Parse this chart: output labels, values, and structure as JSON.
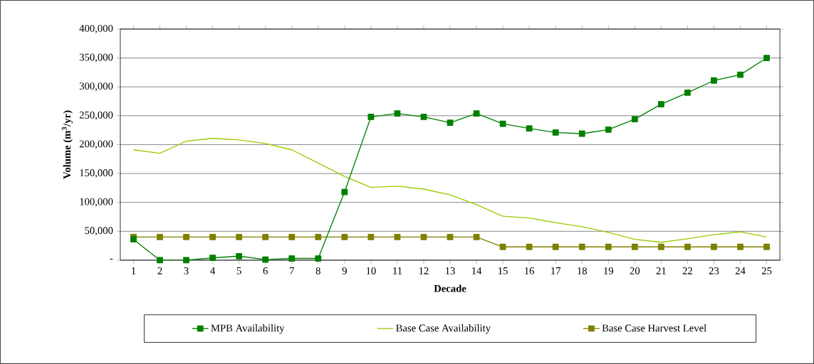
{
  "chart_data": {
    "type": "line",
    "xlabel": "Decade",
    "ylabel": "Volume (m$^{3}$/yr)",
    "categories": [
      "1",
      "2",
      "3",
      "4",
      "5",
      "6",
      "7",
      "8",
      "9",
      "10",
      "11",
      "12",
      "13",
      "14",
      "15",
      "16",
      "17",
      "18",
      "19",
      "20",
      "21",
      "22",
      "23",
      "24",
      "25"
    ],
    "series": [
      {
        "name": "MPB Availability",
        "color": "#008000",
        "marker": "square",
        "values": [
          36000,
          0,
          0,
          4000,
          7000,
          1000,
          3000,
          3000,
          118000,
          248000,
          254000,
          248000,
          238000,
          254000,
          236000,
          228000,
          221000,
          219000,
          226000,
          244000,
          270000,
          290000,
          311000,
          321000,
          350000
        ]
      },
      {
        "name": "Base Case Availability",
        "color": "#99cc00",
        "marker": "none",
        "values": [
          191000,
          185000,
          206000,
          211000,
          208000,
          202000,
          191000,
          168000,
          145000,
          126000,
          128000,
          123000,
          113000,
          96000,
          76000,
          73000,
          65000,
          58000,
          48000,
          36000,
          31000,
          37000,
          44000,
          49000,
          40000
        ]
      },
      {
        "name": "Base Case Harvest Level",
        "color": "#808000",
        "marker": "square",
        "values": [
          40000,
          40000,
          40000,
          40000,
          40000,
          40000,
          40000,
          40000,
          40000,
          40000,
          40000,
          40000,
          40000,
          40000,
          23000,
          23000,
          23000,
          23000,
          23000,
          23000,
          23000,
          23000,
          23000,
          23000,
          23000
        ]
      }
    ],
    "ylim": [
      0,
      400000
    ],
    "yticks": [
      {
        "value": 0,
        "label": "-"
      },
      {
        "value": 50000,
        "label": "50,000"
      },
      {
        "value": 100000,
        "label": "100,000"
      },
      {
        "value": 150000,
        "label": "150,000"
      },
      {
        "value": 200000,
        "label": "200,000"
      },
      {
        "value": 250000,
        "label": "250,000"
      },
      {
        "value": 300000,
        "label": "300,000"
      },
      {
        "value": 350000,
        "label": "350,000"
      },
      {
        "value": 400000,
        "label": "400,000"
      }
    ],
    "grid": "y",
    "legend": "bottom",
    "line_style": "solid"
  }
}
